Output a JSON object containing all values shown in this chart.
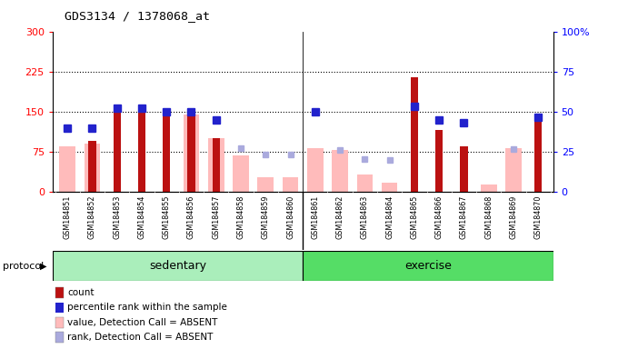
{
  "title": "GDS3134 / 1378068_at",
  "samples": [
    "GSM184851",
    "GSM184852",
    "GSM184853",
    "GSM184854",
    "GSM184855",
    "GSM184856",
    "GSM184857",
    "GSM184858",
    "GSM184859",
    "GSM184860",
    "GSM184861",
    "GSM184862",
    "GSM184863",
    "GSM184864",
    "GSM184865",
    "GSM184866",
    "GSM184867",
    "GSM184868",
    "GSM184869",
    "GSM184870"
  ],
  "count": [
    0,
    95,
    163,
    156,
    145,
    145,
    100,
    0,
    0,
    0,
    0,
    0,
    0,
    0,
    215,
    115,
    85,
    0,
    0,
    140
  ],
  "percentile_rank": [
    120,
    120,
    157,
    156,
    150,
    150,
    135,
    0,
    0,
    0,
    150,
    0,
    0,
    0,
    160,
    135,
    130,
    0,
    0,
    140
  ],
  "value_absent": [
    85,
    90,
    0,
    0,
    0,
    145,
    100,
    68,
    28,
    28,
    82,
    78,
    32,
    18,
    0,
    0,
    0,
    14,
    82,
    0
  ],
  "rank_absent": [
    120,
    0,
    0,
    0,
    0,
    150,
    0,
    82,
    70,
    70,
    150,
    78,
    62,
    60,
    0,
    0,
    0,
    0,
    80,
    0
  ],
  "sedentary_count": 10,
  "ylim_left": [
    0,
    300
  ],
  "ylim_right": [
    0,
    100
  ],
  "yticks_left": [
    0,
    75,
    150,
    225,
    300
  ],
  "yticks_right": [
    0,
    25,
    50,
    75,
    100
  ],
  "bg_color": "#ffffff",
  "plot_bg_color": "#ffffff",
  "grid_color": "black",
  "bar_color_count": "#bb1111",
  "bar_color_absent": "#ffbbbb",
  "dot_color_pct": "#2222cc",
  "dot_color_rank_absent": "#aaaadd",
  "sedentary_color": "#aaeebb",
  "exercise_color": "#55dd66",
  "protocol_label": "protocol",
  "sedentary_label": "sedentary",
  "exercise_label": "exercise",
  "legend_items": [
    {
      "label": "count",
      "color": "#bb1111"
    },
    {
      "label": "percentile rank within the sample",
      "color": "#2222cc"
    },
    {
      "label": "value, Detection Call = ABSENT",
      "color": "#ffbbbb"
    },
    {
      "label": "rank, Detection Call = ABSENT",
      "color": "#aaaadd"
    }
  ]
}
